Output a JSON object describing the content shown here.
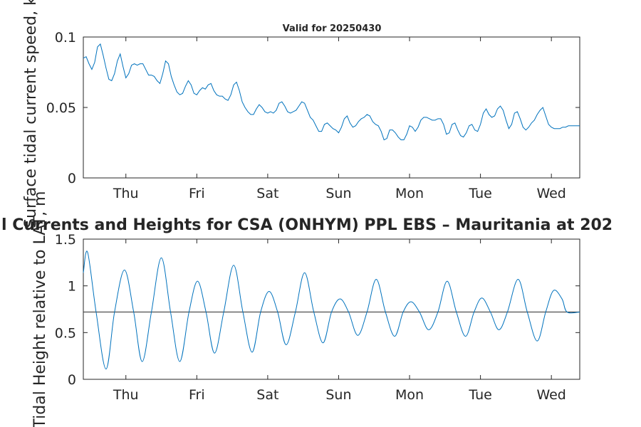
{
  "chart_data": [
    {
      "type": "line",
      "title": "Valid for 20250430",
      "ylabel": "Surface tidal current speed, kn",
      "xlabel": "",
      "ylim": [
        0,
        0.1
      ],
      "yticks": [
        0,
        0.05,
        0.1
      ],
      "ytick_labels": [
        "0",
        "0.05",
        "0.1"
      ],
      "xlim": [
        0,
        7
      ],
      "xtick_positions": [
        0.6,
        1.6,
        2.6,
        3.6,
        4.6,
        5.6,
        6.6
      ],
      "xtick_labels": [
        "Thu",
        "Fri",
        "Sat",
        "Sun",
        "Mon",
        "Tue",
        "Wed"
      ],
      "grid": false,
      "colors": {
        "line": "#0072bd"
      },
      "series": [
        {
          "values": [
            [
              0.0,
              0.085
            ],
            [
              0.04,
              0.086
            ],
            [
              0.08,
              0.081
            ],
            [
              0.12,
              0.077
            ],
            [
              0.16,
              0.082
            ],
            [
              0.2,
              0.093
            ],
            [
              0.24,
              0.095
            ],
            [
              0.28,
              0.087
            ],
            [
              0.32,
              0.078
            ],
            [
              0.36,
              0.07
            ],
            [
              0.4,
              0.069
            ],
            [
              0.44,
              0.074
            ],
            [
              0.48,
              0.083
            ],
            [
              0.52,
              0.088
            ],
            [
              0.56,
              0.079
            ],
            [
              0.6,
              0.071
            ],
            [
              0.64,
              0.074
            ],
            [
              0.68,
              0.08
            ],
            [
              0.72,
              0.081
            ],
            [
              0.76,
              0.08
            ],
            [
              0.8,
              0.081
            ],
            [
              0.84,
              0.081
            ],
            [
              0.88,
              0.077
            ],
            [
              0.92,
              0.073
            ],
            [
              0.96,
              0.073
            ],
            [
              1.0,
              0.072
            ],
            [
              1.04,
              0.069
            ],
            [
              1.08,
              0.067
            ],
            [
              1.12,
              0.074
            ],
            [
              1.16,
              0.083
            ],
            [
              1.2,
              0.081
            ],
            [
              1.24,
              0.072
            ],
            [
              1.28,
              0.066
            ],
            [
              1.32,
              0.061
            ],
            [
              1.36,
              0.059
            ],
            [
              1.4,
              0.06
            ],
            [
              1.44,
              0.065
            ],
            [
              1.48,
              0.069
            ],
            [
              1.52,
              0.066
            ],
            [
              1.56,
              0.06
            ],
            [
              1.6,
              0.059
            ],
            [
              1.64,
              0.062
            ],
            [
              1.68,
              0.064
            ],
            [
              1.72,
              0.063
            ],
            [
              1.76,
              0.066
            ],
            [
              1.8,
              0.067
            ],
            [
              1.84,
              0.062
            ],
            [
              1.88,
              0.059
            ],
            [
              1.92,
              0.058
            ],
            [
              1.96,
              0.058
            ],
            [
              2.0,
              0.056
            ],
            [
              2.04,
              0.055
            ],
            [
              2.08,
              0.059
            ],
            [
              2.12,
              0.066
            ],
            [
              2.16,
              0.068
            ],
            [
              2.2,
              0.062
            ],
            [
              2.24,
              0.054
            ],
            [
              2.28,
              0.05
            ],
            [
              2.32,
              0.047
            ],
            [
              2.36,
              0.045
            ],
            [
              2.4,
              0.045
            ],
            [
              2.44,
              0.049
            ],
            [
              2.48,
              0.052
            ],
            [
              2.52,
              0.05
            ],
            [
              2.56,
              0.047
            ],
            [
              2.6,
              0.046
            ],
            [
              2.64,
              0.047
            ],
            [
              2.68,
              0.046
            ],
            [
              2.72,
              0.048
            ],
            [
              2.76,
              0.053
            ],
            [
              2.8,
              0.054
            ],
            [
              2.84,
              0.051
            ],
            [
              2.88,
              0.047
            ],
            [
              2.92,
              0.046
            ],
            [
              2.96,
              0.047
            ],
            [
              3.0,
              0.048
            ],
            [
              3.04,
              0.051
            ],
            [
              3.08,
              0.054
            ],
            [
              3.12,
              0.053
            ],
            [
              3.16,
              0.048
            ],
            [
              3.2,
              0.043
            ],
            [
              3.24,
              0.041
            ],
            [
              3.28,
              0.037
            ],
            [
              3.32,
              0.033
            ],
            [
              3.36,
              0.033
            ],
            [
              3.4,
              0.038
            ],
            [
              3.44,
              0.039
            ],
            [
              3.48,
              0.037
            ],
            [
              3.52,
              0.035
            ],
            [
              3.56,
              0.034
            ],
            [
              3.6,
              0.032
            ],
            [
              3.64,
              0.036
            ],
            [
              3.68,
              0.042
            ],
            [
              3.72,
              0.044
            ],
            [
              3.76,
              0.039
            ],
            [
              3.8,
              0.036
            ],
            [
              3.84,
              0.037
            ],
            [
              3.88,
              0.04
            ],
            [
              3.92,
              0.042
            ],
            [
              3.96,
              0.043
            ],
            [
              4.0,
              0.045
            ],
            [
              4.04,
              0.044
            ],
            [
              4.08,
              0.04
            ],
            [
              4.12,
              0.038
            ],
            [
              4.16,
              0.037
            ],
            [
              4.2,
              0.033
            ],
            [
              4.24,
              0.027
            ],
            [
              4.28,
              0.028
            ],
            [
              4.32,
              0.034
            ],
            [
              4.36,
              0.034
            ],
            [
              4.4,
              0.032
            ],
            [
              4.44,
              0.029
            ],
            [
              4.48,
              0.027
            ],
            [
              4.52,
              0.027
            ],
            [
              4.56,
              0.031
            ],
            [
              4.6,
              0.037
            ],
            [
              4.64,
              0.036
            ],
            [
              4.68,
              0.033
            ],
            [
              4.72,
              0.036
            ],
            [
              4.76,
              0.041
            ],
            [
              4.8,
              0.043
            ],
            [
              4.84,
              0.043
            ],
            [
              4.88,
              0.042
            ],
            [
              4.92,
              0.041
            ],
            [
              4.96,
              0.041
            ],
            [
              5.0,
              0.042
            ],
            [
              5.04,
              0.042
            ],
            [
              5.08,
              0.038
            ],
            [
              5.12,
              0.031
            ],
            [
              5.16,
              0.032
            ],
            [
              5.2,
              0.038
            ],
            [
              5.24,
              0.039
            ],
            [
              5.28,
              0.034
            ],
            [
              5.32,
              0.03
            ],
            [
              5.36,
              0.029
            ],
            [
              5.4,
              0.032
            ],
            [
              5.44,
              0.037
            ],
            [
              5.48,
              0.038
            ],
            [
              5.52,
              0.034
            ],
            [
              5.56,
              0.033
            ],
            [
              5.6,
              0.038
            ],
            [
              5.64,
              0.046
            ],
            [
              5.68,
              0.049
            ],
            [
              5.72,
              0.045
            ],
            [
              5.76,
              0.043
            ],
            [
              5.8,
              0.044
            ],
            [
              5.84,
              0.049
            ],
            [
              5.88,
              0.051
            ],
            [
              5.92,
              0.048
            ],
            [
              5.96,
              0.041
            ],
            [
              6.0,
              0.035
            ],
            [
              6.04,
              0.038
            ],
            [
              6.08,
              0.046
            ],
            [
              6.12,
              0.047
            ],
            [
              6.16,
              0.042
            ],
            [
              6.2,
              0.036
            ],
            [
              6.24,
              0.034
            ],
            [
              6.28,
              0.036
            ],
            [
              6.32,
              0.039
            ],
            [
              6.36,
              0.041
            ],
            [
              6.4,
              0.045
            ],
            [
              6.44,
              0.048
            ],
            [
              6.48,
              0.05
            ],
            [
              6.52,
              0.044
            ],
            [
              6.56,
              0.038
            ],
            [
              6.6,
              0.036
            ],
            [
              6.64,
              0.035
            ],
            [
              6.68,
              0.035
            ],
            [
              6.72,
              0.035
            ],
            [
              6.76,
              0.036
            ],
            [
              6.8,
              0.036
            ],
            [
              6.84,
              0.037
            ],
            [
              6.88,
              0.037
            ],
            [
              6.92,
              0.037
            ],
            [
              6.96,
              0.037
            ],
            [
              7.0,
              0.037
            ]
          ]
        }
      ]
    },
    {
      "type": "line",
      "title": "l Currents and Heights for CSA (ONHYM) PPL EBS  – Mauritania at 202",
      "ylabel": "Tidal Height relative to LAT, m",
      "xlabel": "",
      "ylim": [
        0,
        1.5
      ],
      "yticks": [
        0,
        0.5,
        1,
        1.5
      ],
      "ytick_labels": [
        "0",
        "0.5",
        "1",
        "1.5"
      ],
      "xlim": [
        0,
        7
      ],
      "xtick_positions": [
        0.6,
        1.6,
        2.6,
        3.6,
        4.6,
        5.6,
        6.6
      ],
      "xtick_labels": [
        "Thu",
        "Fri",
        "Sat",
        "Sun",
        "Mon",
        "Tue",
        "Wed"
      ],
      "grid": false,
      "colors": {
        "line": "#0072bd",
        "reference": "#404040"
      },
      "reference_line": 0.72,
      "series": [
        {
          "values": [
            [
              0.0,
              1.14
            ],
            [
              0.06,
              1.36
            ],
            [
              0.18,
              0.72
            ],
            [
              0.32,
              0.11
            ],
            [
              0.44,
              0.72
            ],
            [
              0.58,
              1.17
            ],
            [
              0.71,
              0.72
            ],
            [
              0.83,
              0.19
            ],
            [
              0.96,
              0.72
            ],
            [
              1.1,
              1.3
            ],
            [
              1.23,
              0.72
            ],
            [
              1.36,
              0.19
            ],
            [
              1.49,
              0.72
            ],
            [
              1.61,
              1.05
            ],
            [
              1.73,
              0.72
            ],
            [
              1.85,
              0.28
            ],
            [
              1.98,
              0.72
            ],
            [
              2.12,
              1.22
            ],
            [
              2.25,
              0.72
            ],
            [
              2.38,
              0.29
            ],
            [
              2.5,
              0.72
            ],
            [
              2.62,
              0.94
            ],
            [
              2.74,
              0.72
            ],
            [
              2.86,
              0.37
            ],
            [
              2.99,
              0.72
            ],
            [
              3.12,
              1.14
            ],
            [
              3.25,
              0.72
            ],
            [
              3.38,
              0.39
            ],
            [
              3.5,
              0.72
            ],
            [
              3.62,
              0.86
            ],
            [
              3.74,
              0.72
            ],
            [
              3.87,
              0.47
            ],
            [
              4.0,
              0.72
            ],
            [
              4.13,
              1.07
            ],
            [
              4.26,
              0.72
            ],
            [
              4.39,
              0.46
            ],
            [
              4.51,
              0.72
            ],
            [
              4.62,
              0.83
            ],
            [
              4.74,
              0.72
            ],
            [
              4.87,
              0.53
            ],
            [
              5.0,
              0.72
            ],
            [
              5.13,
              1.05
            ],
            [
              5.26,
              0.72
            ],
            [
              5.39,
              0.46
            ],
            [
              5.51,
              0.72
            ],
            [
              5.62,
              0.87
            ],
            [
              5.74,
              0.72
            ],
            [
              5.86,
              0.53
            ],
            [
              5.98,
              0.72
            ],
            [
              6.13,
              1.07
            ],
            [
              6.26,
              0.72
            ],
            [
              6.4,
              0.41
            ],
            [
              6.52,
              0.72
            ],
            [
              6.63,
              0.95
            ],
            [
              6.75,
              0.86
            ],
            [
              6.82,
              0.72
            ],
            [
              7.0,
              0.72
            ]
          ]
        }
      ]
    }
  ]
}
